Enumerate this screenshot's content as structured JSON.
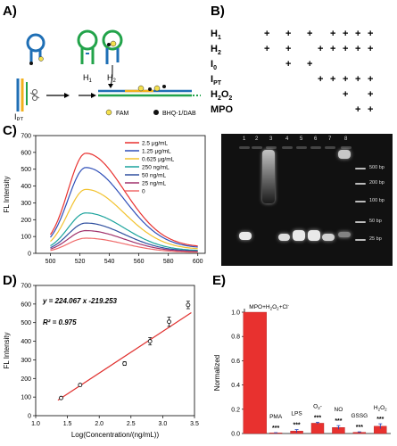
{
  "panels": {
    "A": "A)",
    "B": "B)",
    "C": "C)",
    "D": "D)",
    "E": "E)"
  },
  "panelA": {
    "labels": {
      "h1": "H1",
      "h2": "H2",
      "ipt": "IPT"
    },
    "legend": {
      "fam": "FAM",
      "bhq": "BHQ-1/DAB"
    },
    "colors": {
      "probe_blue": "#1f6fb5",
      "probe_green": "#22a34a",
      "fam": "#f4e04d"
    }
  },
  "panelB": {
    "rows": [
      {
        "label": "H1",
        "marks": [
          "+",
          "+",
          "+",
          "",
          "+",
          "+",
          "+",
          "+"
        ]
      },
      {
        "label": "H2",
        "marks": [
          "+",
          "+",
          "",
          "+",
          "+",
          "+",
          "+",
          "+"
        ]
      },
      {
        "label": "I0",
        "marks": [
          "",
          "+",
          "+",
          "",
          "",
          "",
          "",
          ""
        ]
      },
      {
        "label": "IPT",
        "marks": [
          "",
          "",
          "",
          "+",
          "+",
          "+",
          "+",
          "+"
        ]
      },
      {
        "label": "H2O2",
        "marks": [
          "",
          "",
          "",
          "",
          "",
          "+",
          "",
          "+"
        ]
      },
      {
        "label": "MPO",
        "marks": [
          "",
          "",
          "",
          "",
          "",
          "",
          "+",
          "+"
        ]
      }
    ]
  },
  "panelC": {
    "chart_data": {
      "type": "line",
      "ylabel": "FL Intensity",
      "xlim": [
        490,
        605
      ],
      "ylim": [
        0,
        700
      ],
      "xticks": [
        500,
        520,
        540,
        560,
        580,
        600
      ],
      "yticks": [
        0,
        100,
        200,
        300,
        400,
        500,
        600,
        700
      ],
      "x": [
        500,
        505,
        510,
        515,
        520,
        525,
        530,
        535,
        540,
        545,
        550,
        555,
        560,
        570,
        580,
        590,
        600
      ],
      "series": [
        {
          "name": "2.5 μg/mL",
          "color": "#e8312f",
          "peak": 595
        },
        {
          "name": "1.25 μg/mL",
          "color": "#2f4fb8",
          "peak": 510
        },
        {
          "name": "0.625 μg/mL",
          "color": "#f2c22e",
          "peak": 380
        },
        {
          "name": "250 ng/mL",
          "color": "#1ba39c",
          "peak": 240
        },
        {
          "name": "50 ng/mL",
          "color": "#2f4f9f",
          "peak": 180
        },
        {
          "name": "25 ng/mL",
          "color": "#a0306a",
          "peak": 135
        },
        {
          "name": "0",
          "color": "#f06a6a",
          "peak": 90
        }
      ]
    }
  },
  "panelGel": {
    "lanes": [
      "1",
      "2",
      "3",
      "4",
      "5",
      "6",
      "7",
      "8"
    ],
    "ladder": [
      "500 bp",
      "200 bp",
      "100 bp",
      "50 bp",
      "25 bp"
    ]
  },
  "panelD": {
    "chart_data": {
      "type": "scatter",
      "xlabel": "Log(Concentration/(ng/mL))",
      "ylabel": "FL Intensity",
      "equation": "y = 224.067 x -219.253",
      "r2": "R² = 0.975",
      "xlim": [
        1.0,
        3.5
      ],
      "ylim": [
        0,
        700
      ],
      "xticks": [
        1.0,
        1.5,
        2.0,
        2.5,
        3.0,
        3.5
      ],
      "yticks": [
        0,
        100,
        200,
        300,
        400,
        500,
        600,
        700
      ],
      "points": [
        {
          "x": 1.4,
          "y": 95,
          "err": 5
        },
        {
          "x": 1.7,
          "y": 165,
          "err": 6
        },
        {
          "x": 2.4,
          "y": 280,
          "err": 10
        },
        {
          "x": 2.8,
          "y": 400,
          "err": 20
        },
        {
          "x": 3.1,
          "y": 505,
          "err": 25
        },
        {
          "x": 3.4,
          "y": 595,
          "err": 20
        }
      ],
      "fit": {
        "slope": 224.067,
        "intercept": -219.253,
        "color": "#e0302e"
      }
    }
  },
  "panelE": {
    "chart_data": {
      "type": "bar",
      "ylabel": "Normalized",
      "ylim": [
        0,
        1.0
      ],
      "yticks": [
        0.0,
        0.2,
        0.4,
        0.6,
        0.8,
        1.0
      ],
      "categories": [
        "MPO+H2O2+Cl-",
        "PMA",
        "LPS",
        "O2-",
        "NO",
        "GSSG",
        "H2O2"
      ],
      "values": [
        1.0,
        0.005,
        0.02,
        0.085,
        0.05,
        0.01,
        0.06
      ],
      "errors": [
        0.0,
        0.002,
        0.012,
        0.008,
        0.015,
        0.004,
        0.02
      ],
      "significance": [
        "",
        "***",
        "***",
        "***",
        "***",
        "***",
        "***"
      ],
      "bar_color": "#e8312f"
    }
  }
}
